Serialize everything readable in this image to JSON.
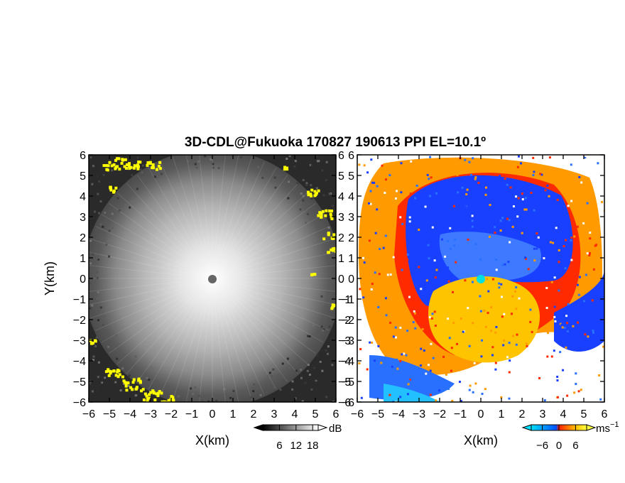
{
  "chart_data": [
    {
      "type": "heatmap",
      "title": "3D-CDL@Fukuoka 170827 190613 PPI EL=10.1º",
      "panel": "left",
      "xlabel": "X(km)",
      "ylabel": "Y(km)",
      "xlim": [
        -6,
        6
      ],
      "ylim": [
        -6,
        6
      ],
      "xticks": [
        -6,
        -5,
        -4,
        -3,
        -2,
        -1,
        0,
        1,
        2,
        3,
        4,
        5,
        6
      ],
      "yticks": [
        -6,
        -5,
        -4,
        -3,
        -2,
        -1,
        0,
        1,
        2,
        3,
        4,
        5,
        6
      ],
      "x_tick_labels": [
        "−6",
        "−5",
        "−4",
        "−3",
        "−2",
        "−1",
        "0",
        "1",
        "2",
        "3",
        "4",
        "5",
        "6"
      ],
      "y_tick_labels": [
        "−6",
        "−5",
        "−4",
        "−3",
        "−2",
        "−1",
        "0",
        "1",
        "2",
        "3",
        "4",
        "5",
        "6"
      ],
      "colorbar": {
        "unit": "dB",
        "ticks": [
          6,
          12,
          18
        ],
        "tick_labels": [
          "6",
          "12",
          "18"
        ],
        "range": [
          0,
          20
        ],
        "colors": [
          "#000000",
          "#ffffff"
        ]
      },
      "highlight_color": "#ffff00"
    },
    {
      "type": "heatmap",
      "panel": "right",
      "xlabel": "X(km)",
      "ylabel": "",
      "xlim": [
        -6,
        6
      ],
      "ylim": [
        -6,
        6
      ],
      "xticks": [
        -6,
        -5,
        -4,
        -3,
        -2,
        -1,
        0,
        1,
        2,
        3,
        4,
        5,
        6
      ],
      "yticks": [
        -6,
        -5,
        -4,
        -3,
        -2,
        -1,
        0,
        1,
        2,
        3,
        4,
        5,
        6
      ],
      "x_tick_labels": [
        "−6",
        "−5",
        "−4",
        "−3",
        "−2",
        "−1",
        "0",
        "1",
        "2",
        "3",
        "4",
        "5",
        "6"
      ],
      "y_tick_labels": [
        "−6",
        "−5",
        "−4",
        "−3",
        "−2",
        "−1",
        "0",
        "1",
        "2",
        "3",
        "4",
        "5",
        "6"
      ],
      "colorbar": {
        "unit": "ms",
        "unit_exponent": "−1",
        "ticks": [
          -6,
          0,
          6
        ],
        "tick_labels": [
          "−6",
          "0",
          "6"
        ],
        "range": [
          -10,
          10
        ],
        "colors": [
          "#00e0ff",
          "#0050ff",
          "#ff2000",
          "#ffc000",
          "#ffff40"
        ]
      }
    }
  ]
}
